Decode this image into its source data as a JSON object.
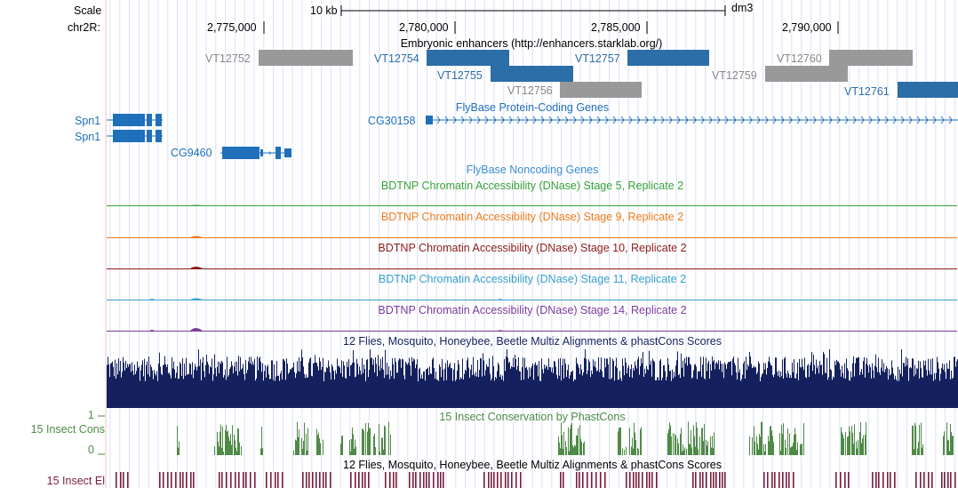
{
  "scale_row": {
    "label": "Scale",
    "bar_label": "10 kb",
    "assembly": "dm3"
  },
  "position_row": {
    "label": "chr2R:",
    "ticks": [
      "2,775,000",
      "2,780,000",
      "2,785,000",
      "2,790,000"
    ]
  },
  "enhancers": {
    "title": "Embryonic enhancers (http://enhancers.starklab.org/)",
    "items": [
      {
        "name": "VT12752",
        "color": "#999999"
      },
      {
        "name": "VT12754",
        "color": "#2c6ea8"
      },
      {
        "name": "VT12755",
        "color": "#2c6ea8"
      },
      {
        "name": "VT12756",
        "color": "#999999"
      },
      {
        "name": "VT12757",
        "color": "#2c6ea8"
      },
      {
        "name": "VT12759",
        "color": "#999999"
      },
      {
        "name": "VT12760",
        "color": "#999999"
      },
      {
        "name": "VT12761",
        "color": "#2c6ea8"
      }
    ]
  },
  "genes": {
    "title": "FlyBase Protein-Coding Genes",
    "items": [
      {
        "name": "Spn1"
      },
      {
        "name": "Spn1"
      },
      {
        "name": "CG9460"
      },
      {
        "name": "CG30158"
      }
    ],
    "color": "#1f6fba"
  },
  "noncoding": {
    "title": "FlyBase Noncoding Genes",
    "color": "#3a8fd6"
  },
  "dnase_tracks": [
    {
      "title": "BDTNP Chromatin Accessibility (DNase) Stage 5, Replicate 2",
      "color": "#38a33b"
    },
    {
      "title": "BDTNP Chromatin Accessibility (DNase) Stage 9, Replicate 2",
      "color": "#f07c1e"
    },
    {
      "title": "BDTNP Chromatin Accessibility (DNase) Stage 10, Replicate 2",
      "color": "#8c1c1c"
    },
    {
      "title": "BDTNP Chromatin Accessibility (DNase) Stage 11, Replicate 2",
      "color": "#3aa0cf"
    },
    {
      "title": "BDTNP Chromatin Accessibility (DNase) Stage 14, Replicate 2",
      "color": "#7a3e9d"
    }
  ],
  "multiz": {
    "title": "12 Flies, Mosquito, Honeybee, Beetle Multiz Alignments & phastCons Scores",
    "color": "#15215e"
  },
  "insect_cons": {
    "title": "15 Insect Conservation by PhastCons",
    "row_label": "15 Insect Cons",
    "axis_top": "1",
    "axis_bottom": "0",
    "color": "#4f8a47"
  },
  "insect_el": {
    "title": "12 Flies, Mosquito, Honeybee, Beetle Multiz Alignments & phastCons Scores",
    "row_label": "15 Insect El",
    "color": "#7a1f3d"
  }
}
